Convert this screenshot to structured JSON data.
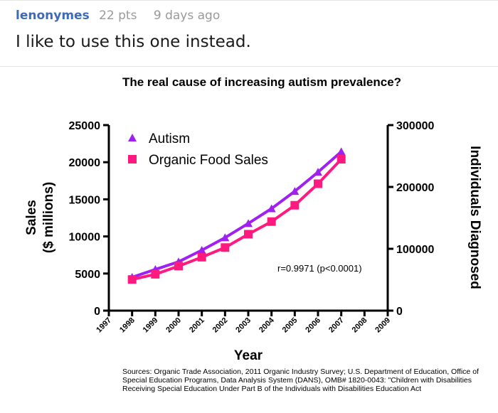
{
  "comment": {
    "username": "lenonymes",
    "points": "22 pts",
    "time": "9 days ago",
    "text": "I like to use this one instead."
  },
  "chart_data": {
    "type": "line",
    "title": "The real cause of increasing autism prevalence?",
    "xlabel": "Year",
    "ylabel_left": "Sales ($ millions)",
    "ylabel_left_lines": [
      "Sales",
      "($ millions)"
    ],
    "ylabel_right": "Individuals Diagnosed",
    "xlim": [
      1997,
      2009
    ],
    "ylim_left": [
      0,
      25000
    ],
    "ylim_right": [
      0,
      300000
    ],
    "x_ticks": [
      "1997",
      "1998",
      "1999",
      "2000",
      "2001",
      "2002",
      "2003",
      "2004",
      "2005",
      "2006",
      "2007",
      "2008",
      "2009"
    ],
    "y_ticks_left": [
      "0",
      "5000",
      "10000",
      "15000",
      "20000",
      "25000"
    ],
    "y_ticks_right": [
      "0",
      "100000",
      "200000",
      "300000"
    ],
    "x": [
      1998,
      1999,
      2000,
      2001,
      2002,
      2003,
      2004,
      2005,
      2006,
      2007
    ],
    "series": [
      {
        "name": "Autism",
        "axis": "right",
        "marker": "triangle",
        "color": "#a020f0",
        "values": [
          54000,
          66600,
          79000,
          97700,
          118000,
          141000,
          165000,
          193000,
          224000,
          257000
        ]
      },
      {
        "name": "Organic Food Sales",
        "axis": "left",
        "marker": "square",
        "color": "#ff1a7f",
        "values": [
          4200,
          4900,
          6000,
          7200,
          8500,
          10300,
          12000,
          14200,
          17100,
          20400
        ]
      }
    ],
    "legend_position": "top-left",
    "annotation": "r=0.9971 (p<0.0001)",
    "sources": "Sources: Organic Trade Association,  2011 Organic Industry Survey; U.S. Department of Education, Office of Special Education Programs, Data Analysis System (DANS), OMB# 1820-0043: \"Children with Disabilities Receiving Special Education Under Part B of the Individuals with Disabilities Education Act"
  }
}
